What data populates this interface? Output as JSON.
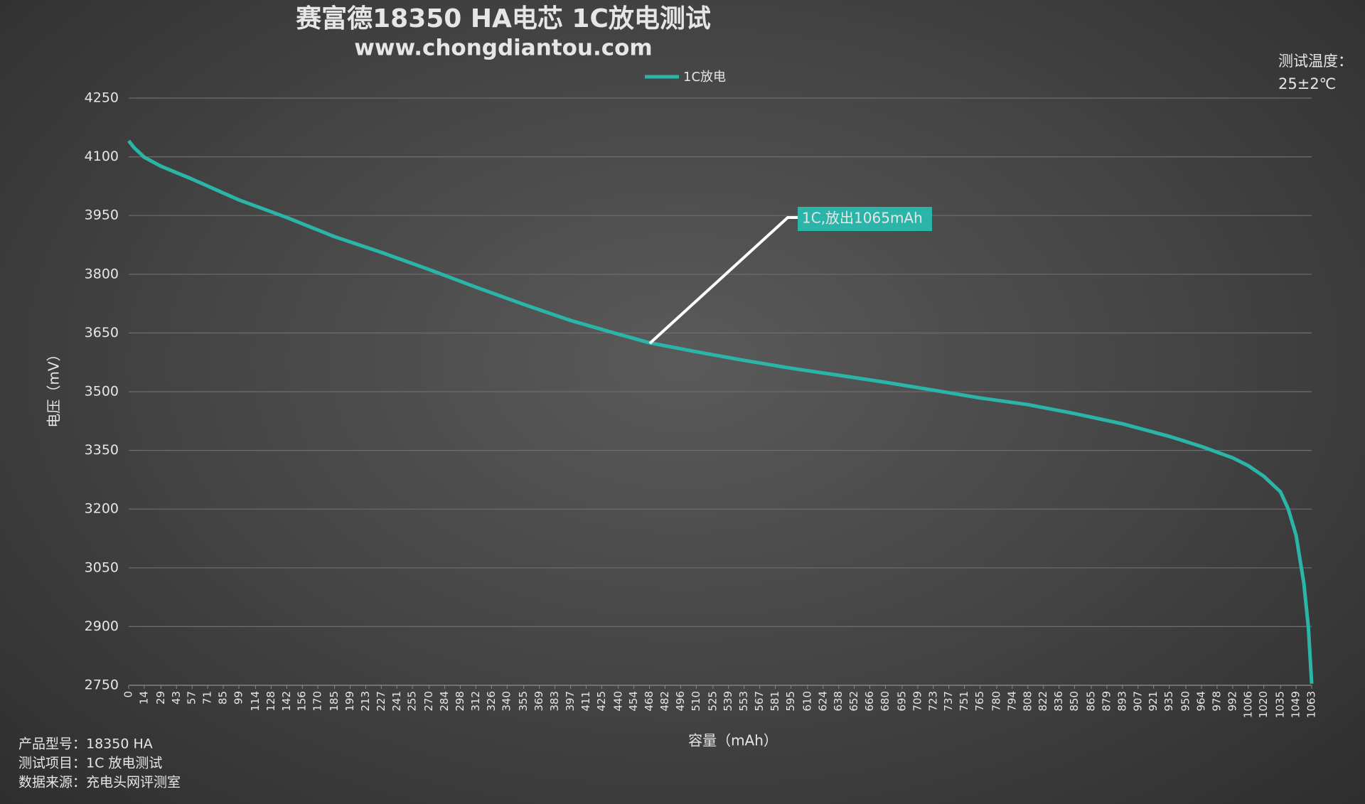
{
  "chart_data": {
    "type": "line",
    "title": "赛富德18350 HA电芯  1C放电测试",
    "subtitle": "www.chongdiantou.com",
    "x_label": "容量（mAh）",
    "y_label": "电压（mV）",
    "annotation": "1C,放出1065mAh",
    "notes_right": [
      "测试温度：",
      "25±2℃"
    ],
    "notes_left": [
      "产品型号：18350 HA",
      "测试项目：1C 放电测试",
      "数据来源：充电头网评测室"
    ],
    "x": [
      0,
      5,
      14,
      29,
      57,
      99,
      142,
      185,
      227,
      270,
      312,
      355,
      397,
      440,
      468,
      510,
      553,
      595,
      638,
      680,
      723,
      765,
      808,
      850,
      893,
      935,
      964,
      992,
      1006,
      1020,
      1035,
      1042,
      1049,
      1056,
      1060,
      1063
    ],
    "series": [
      {
        "name": "1C放电",
        "color": "#2ab5a8",
        "values": [
          4141,
          4123,
          4099,
          4076,
          4043,
          3990,
          3945,
          3896,
          3856,
          3812,
          3767,
          3723,
          3682,
          3647,
          3625,
          3602,
          3580,
          3560,
          3542,
          3524,
          3504,
          3484,
          3467,
          3444,
          3418,
          3386,
          3360,
          3331,
          3311,
          3284,
          3244,
          3200,
          3133,
          3010,
          2899,
          2754
        ]
      }
    ],
    "xlim": [
      0,
      1063
    ],
    "xticks": [
      0,
      14,
      29,
      43,
      57,
      71,
      85,
      99,
      114,
      128,
      142,
      156,
      170,
      185,
      199,
      213,
      227,
      241,
      255,
      270,
      284,
      298,
      312,
      326,
      340,
      355,
      369,
      383,
      397,
      411,
      425,
      440,
      454,
      468,
      482,
      496,
      510,
      525,
      539,
      553,
      567,
      581,
      595,
      610,
      624,
      638,
      652,
      666,
      680,
      695,
      709,
      723,
      737,
      751,
      765,
      780,
      794,
      808,
      822,
      836,
      850,
      865,
      879,
      893,
      907,
      921,
      935,
      950,
      964,
      978,
      992,
      1006,
      1020,
      1035,
      1049,
      1063
    ],
    "ylim": [
      2750,
      4250
    ],
    "yticks": [
      2750,
      2900,
      3050,
      3200,
      3350,
      3500,
      3650,
      3800,
      3950,
      4100,
      4250
    ],
    "grid": true
  }
}
